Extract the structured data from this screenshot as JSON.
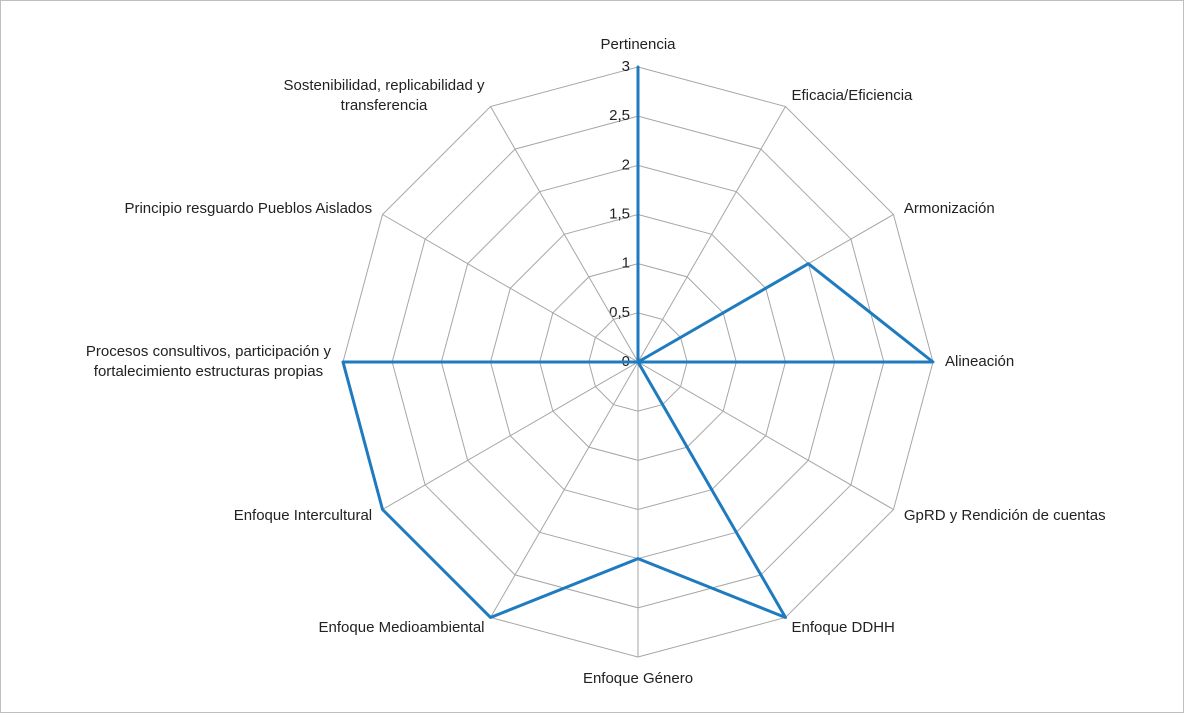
{
  "chart_data": {
    "type": "radar",
    "categories": [
      "Pertinencia",
      "Eficacia/Eficiencia",
      "Armonización",
      "Alineación",
      "GpRD y Rendición de cuentas",
      "Enfoque DDHH",
      "Enfoque Género",
      "Enfoque Medioambiental",
      "Enfoque Intercultural",
      "Procesos consultivos, participación y\nfortalecimiento estructuras propias",
      "Principio resguardo Pueblos Aislados",
      "Sostenibilidad, replicabilidad y\ntransferencia"
    ],
    "values": [
      3,
      0,
      2,
      3,
      0,
      3,
      2,
      3,
      3,
      3,
      0,
      0
    ],
    "color": "#1f7bbf",
    "ylim": [
      0,
      3
    ],
    "yticks": [
      0,
      {
        "value": 0.5,
        "label": "0,5"
      },
      1,
      {
        "value": 1.5,
        "label": "1,5"
      },
      2,
      {
        "value": 2.5,
        "label": "2,5"
      },
      3
    ],
    "grid": true
  }
}
